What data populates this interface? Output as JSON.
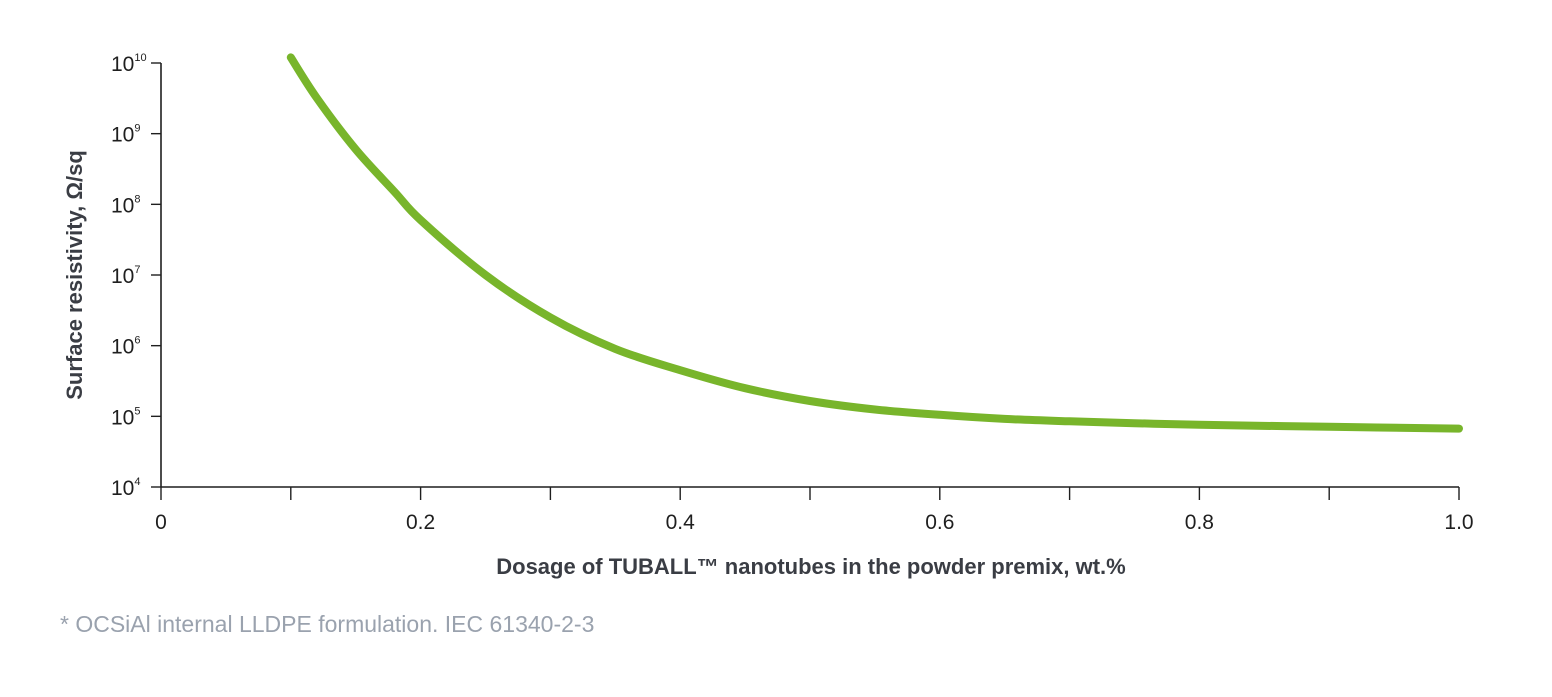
{
  "chart_data": {
    "type": "line",
    "title": "",
    "xlabel": "Dosage of TUBALL™ nanotubes in the powder premix, wt.%",
    "ylabel": "Surface resistivity, Ω/sq",
    "xlim": [
      0,
      1.0
    ],
    "ylim": [
      10000,
      10000000000
    ],
    "yscale": "log",
    "x_ticks": [
      {
        "value": 0,
        "label": "0"
      },
      {
        "value": 0.1,
        "label": ""
      },
      {
        "value": 0.2,
        "label": "0.2"
      },
      {
        "value": 0.3,
        "label": ""
      },
      {
        "value": 0.4,
        "label": "0.4"
      },
      {
        "value": 0.5,
        "label": ""
      },
      {
        "value": 0.6,
        "label": "0.6"
      },
      {
        "value": 0.7,
        "label": ""
      },
      {
        "value": 0.8,
        "label": "0.8"
      },
      {
        "value": 0.9,
        "label": ""
      },
      {
        "value": 1.0,
        "label": "1.0"
      }
    ],
    "y_ticks": [
      {
        "value": 10000,
        "base": "10",
        "exp": "4"
      },
      {
        "value": 100000,
        "base": "10",
        "exp": "5"
      },
      {
        "value": 1000000,
        "base": "10",
        "exp": "6"
      },
      {
        "value": 10000000,
        "base": "10",
        "exp": "7"
      },
      {
        "value": 100000000,
        "base": "10",
        "exp": "8"
      },
      {
        "value": 1000000000,
        "base": "10",
        "exp": "9"
      },
      {
        "value": 10000000000,
        "base": "10",
        "exp": "10"
      }
    ],
    "grid": false,
    "legend": "none",
    "series": [
      {
        "color": "#78b52b",
        "x": [
          0.1,
          0.12,
          0.15,
          0.18,
          0.2,
          0.25,
          0.3,
          0.35,
          0.4,
          0.45,
          0.5,
          0.55,
          0.6,
          0.65,
          0.7,
          0.75,
          0.8,
          0.9,
          1.0
        ],
        "y": [
          12000000000,
          3200000000,
          600000000,
          150000000,
          60000000,
          10000000,
          2500000,
          900000,
          450000,
          250000,
          165000,
          125000,
          105000,
          92000,
          85000,
          80000,
          76000,
          71000,
          67000
        ]
      }
    ]
  },
  "footnote": "* OCSiAl internal LLDPE formulation. IEC 61340-2-3"
}
